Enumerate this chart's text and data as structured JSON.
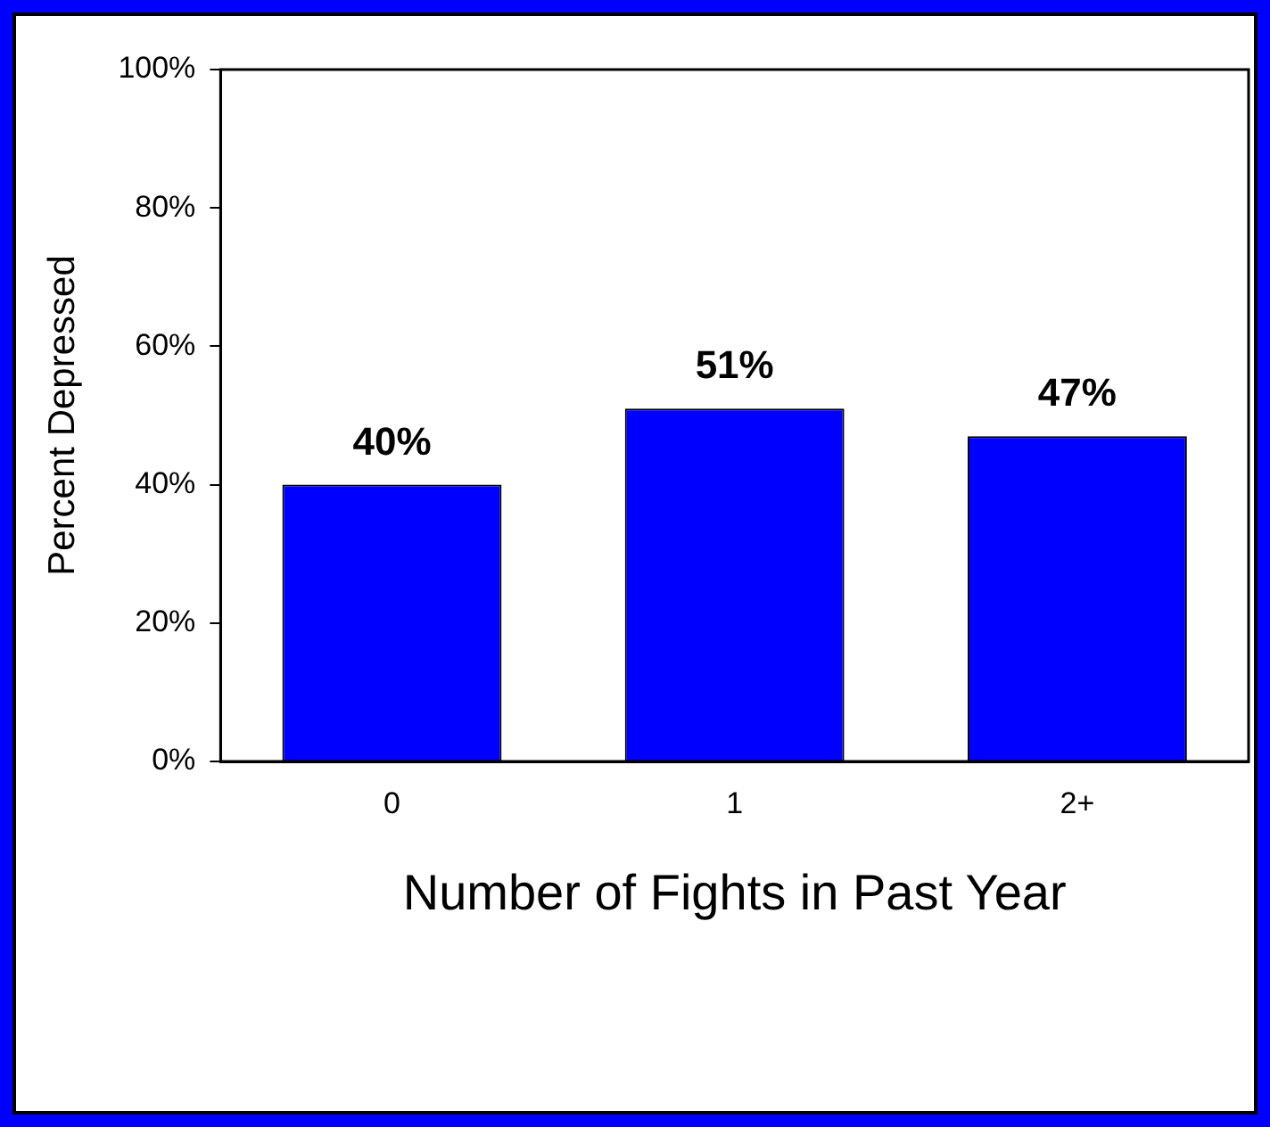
{
  "chart_data": {
    "type": "bar",
    "xlabel": "Number of Fights in Past Year",
    "ylabel": "Percent Depressed",
    "categories": [
      "0",
      "1",
      "2+"
    ],
    "values": [
      40,
      51,
      47
    ],
    "value_labels": [
      "40%",
      "51%",
      "47%"
    ],
    "color": "#0000ff",
    "ylim": [
      0,
      100
    ],
    "yticks": [
      {
        "value": 0,
        "label": "0%"
      },
      {
        "value": 20,
        "label": "20%"
      },
      {
        "value": 40,
        "label": "40%"
      },
      {
        "value": 60,
        "label": "60%"
      },
      {
        "value": 80,
        "label": "80%"
      },
      {
        "value": 100,
        "label": "100%"
      }
    ],
    "grid": false,
    "legend": false
  }
}
